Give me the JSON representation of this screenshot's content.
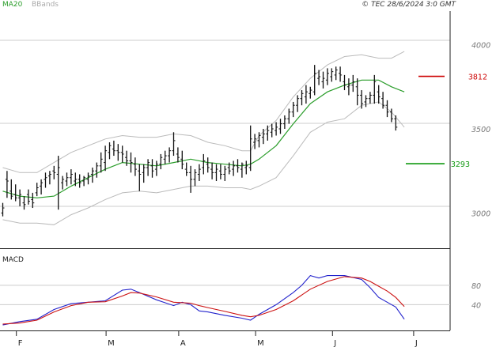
{
  "header": {
    "legend_ma": "MA20",
    "legend_bb": "BBands",
    "copyright": "© TEC 28/6/2024 3:0 GMT"
  },
  "colors": {
    "candle": "#111111",
    "ma20": "#2a9d2a",
    "bbands": "#bbbbbb",
    "resistance": "#cc0000",
    "support": "#119911",
    "macd": "#2222cc",
    "signal": "#cc1111",
    "grid": "#cccccc",
    "axis": "#222222"
  },
  "chart_data": [
    {
      "type": "ohlc",
      "panel": "price",
      "ylim": [
        2800,
        4200
      ],
      "yticks": [
        {
          "value": 4000,
          "label": "4000"
        },
        {
          "value": 3500,
          "label": "3500"
        },
        {
          "value": 3000,
          "label": "3000"
        }
      ],
      "levels": [
        {
          "name": "resistance",
          "value": 3812,
          "label": "3812"
        },
        {
          "name": "support",
          "value": 3293,
          "label": "3293"
        }
      ],
      "x_months": [
        {
          "index": 3,
          "label": "F"
        },
        {
          "index": 24,
          "label": "M"
        },
        {
          "index": 41,
          "label": "A"
        },
        {
          "index": 59,
          "label": "M"
        },
        {
          "index": 77,
          "label": "J"
        },
        {
          "index": 96,
          "label": "J"
        }
      ],
      "n_slots": 104,
      "ohlc": [
        [
          3000,
          3060,
          2980,
          3030
        ],
        [
          3200,
          3250,
          3090,
          3190
        ],
        [
          3130,
          3200,
          3080,
          3100
        ],
        [
          3110,
          3170,
          3070,
          3090
        ],
        [
          3090,
          3140,
          3040,
          3110
        ],
        [
          3060,
          3100,
          3020,
          3050
        ],
        [
          3110,
          3140,
          3050,
          3070
        ],
        [
          3080,
          3120,
          3030,
          3060
        ],
        [
          3120,
          3180,
          3100,
          3150
        ],
        [
          3160,
          3200,
          3110,
          3180
        ],
        [
          3200,
          3240,
          3150,
          3210
        ],
        [
          3220,
          3250,
          3170,
          3230
        ],
        [
          3250,
          3280,
          3200,
          3240
        ],
        [
          3230,
          3340,
          3020,
          3270
        ],
        [
          3180,
          3220,
          3140,
          3200
        ],
        [
          3190,
          3240,
          3160,
          3210
        ],
        [
          3210,
          3260,
          3170,
          3230
        ],
        [
          3190,
          3240,
          3160,
          3200
        ],
        [
          3200,
          3230,
          3150,
          3180
        ],
        [
          3190,
          3220,
          3160,
          3210
        ],
        [
          3200,
          3240,
          3170,
          3220
        ],
        [
          3230,
          3270,
          3180,
          3250
        ],
        [
          3250,
          3300,
          3210,
          3280
        ],
        [
          3280,
          3360,
          3240,
          3320
        ],
        [
          3300,
          3400,
          3250,
          3370
        ],
        [
          3360,
          3420,
          3320,
          3400
        ],
        [
          3380,
          3430,
          3340,
          3370
        ],
        [
          3370,
          3410,
          3310,
          3360
        ],
        [
          3360,
          3400,
          3300,
          3350
        ],
        [
          3330,
          3370,
          3280,
          3310
        ],
        [
          3310,
          3360,
          3240,
          3300
        ],
        [
          3290,
          3330,
          3220,
          3260
        ],
        [
          3250,
          3290,
          3130,
          3230
        ],
        [
          3240,
          3290,
          3180,
          3270
        ],
        [
          3270,
          3320,
          3220,
          3300
        ],
        [
          3280,
          3320,
          3210,
          3250
        ],
        [
          3260,
          3310,
          3220,
          3290
        ],
        [
          3290,
          3350,
          3260,
          3330
        ],
        [
          3320,
          3370,
          3290,
          3340
        ],
        [
          3340,
          3390,
          3300,
          3370
        ],
        [
          3370,
          3480,
          3340,
          3430
        ],
        [
          3350,
          3390,
          3300,
          3330
        ],
        [
          3320,
          3370,
          3260,
          3290
        ],
        [
          3260,
          3300,
          3220,
          3240
        ],
        [
          3240,
          3280,
          3120,
          3200
        ],
        [
          3200,
          3260,
          3160,
          3240
        ],
        [
          3230,
          3290,
          3190,
          3260
        ],
        [
          3270,
          3350,
          3230,
          3310
        ],
        [
          3290,
          3330,
          3240,
          3270
        ],
        [
          3260,
          3300,
          3200,
          3240
        ],
        [
          3240,
          3290,
          3190,
          3260
        ],
        [
          3250,
          3290,
          3200,
          3230
        ],
        [
          3230,
          3280,
          3190,
          3260
        ],
        [
          3270,
          3300,
          3230,
          3250
        ],
        [
          3260,
          3310,
          3220,
          3280
        ],
        [
          3280,
          3320,
          3240,
          3270
        ],
        [
          3260,
          3300,
          3210,
          3290
        ],
        [
          3270,
          3310,
          3230,
          3280
        ],
        [
          3270,
          3520,
          3250,
          3440
        ],
        [
          3420,
          3470,
          3380,
          3440
        ],
        [
          3430,
          3480,
          3390,
          3460
        ],
        [
          3450,
          3500,
          3410,
          3470
        ],
        [
          3470,
          3520,
          3430,
          3490
        ],
        [
          3480,
          3530,
          3450,
          3500
        ],
        [
          3490,
          3540,
          3460,
          3510
        ],
        [
          3500,
          3560,
          3470,
          3530
        ],
        [
          3530,
          3580,
          3500,
          3560
        ],
        [
          3560,
          3620,
          3530,
          3600
        ],
        [
          3600,
          3660,
          3570,
          3640
        ],
        [
          3640,
          3700,
          3600,
          3680
        ],
        [
          3680,
          3730,
          3640,
          3710
        ],
        [
          3690,
          3760,
          3650,
          3720
        ],
        [
          3710,
          3750,
          3680,
          3730
        ],
        [
          3720,
          3880,
          3700,
          3830
        ],
        [
          3800,
          3850,
          3760,
          3810
        ],
        [
          3780,
          3840,
          3740,
          3800
        ],
        [
          3790,
          3860,
          3760,
          3830
        ],
        [
          3810,
          3860,
          3780,
          3840
        ],
        [
          3820,
          3870,
          3790,
          3850
        ],
        [
          3830,
          3870,
          3780,
          3820
        ],
        [
          3780,
          3820,
          3730,
          3760
        ],
        [
          3750,
          3800,
          3700,
          3760
        ],
        [
          3760,
          3820,
          3720,
          3780
        ],
        [
          3750,
          3800,
          3640,
          3700
        ],
        [
          3700,
          3730,
          3620,
          3650
        ],
        [
          3660,
          3700,
          3630,
          3680
        ],
        [
          3680,
          3720,
          3650,
          3700
        ],
        [
          3700,
          3820,
          3650,
          3780
        ],
        [
          3720,
          3760,
          3650,
          3690
        ],
        [
          3680,
          3720,
          3620,
          3640
        ],
        [
          3640,
          3670,
          3570,
          3600
        ],
        [
          3600,
          3620,
          3540,
          3560
        ],
        [
          3560,
          3580,
          3490,
          3510
        ]
      ],
      "ma20": [
        [
          0,
          3130
        ],
        [
          4,
          3100
        ],
        [
          8,
          3090
        ],
        [
          12,
          3100
        ],
        [
          16,
          3160
        ],
        [
          20,
          3210
        ],
        [
          24,
          3260
        ],
        [
          28,
          3300
        ],
        [
          32,
          3290
        ],
        [
          36,
          3280
        ],
        [
          40,
          3300
        ],
        [
          44,
          3320
        ],
        [
          48,
          3300
        ],
        [
          52,
          3290
        ],
        [
          56,
          3280
        ],
        [
          58,
          3290
        ],
        [
          60,
          3320
        ],
        [
          64,
          3400
        ],
        [
          68,
          3530
        ],
        [
          72,
          3650
        ],
        [
          76,
          3720
        ],
        [
          80,
          3760
        ],
        [
          84,
          3790
        ],
        [
          88,
          3790
        ],
        [
          91,
          3750
        ],
        [
          94,
          3720
        ]
      ],
      "bb_upper": [
        [
          0,
          3270
        ],
        [
          4,
          3240
        ],
        [
          8,
          3240
        ],
        [
          12,
          3300
        ],
        [
          16,
          3360
        ],
        [
          20,
          3400
        ],
        [
          24,
          3440
        ],
        [
          28,
          3460
        ],
        [
          32,
          3450
        ],
        [
          36,
          3450
        ],
        [
          40,
          3470
        ],
        [
          44,
          3460
        ],
        [
          48,
          3420
        ],
        [
          52,
          3400
        ],
        [
          56,
          3370
        ],
        [
          58,
          3370
        ],
        [
          60,
          3460
        ],
        [
          64,
          3550
        ],
        [
          68,
          3690
        ],
        [
          72,
          3800
        ],
        [
          76,
          3880
        ],
        [
          80,
          3930
        ],
        [
          84,
          3940
        ],
        [
          88,
          3920
        ],
        [
          91,
          3920
        ],
        [
          94,
          3960
        ]
      ],
      "bb_lower": [
        [
          0,
          2960
        ],
        [
          4,
          2940
        ],
        [
          8,
          2940
        ],
        [
          12,
          2930
        ],
        [
          16,
          2990
        ],
        [
          20,
          3030
        ],
        [
          24,
          3080
        ],
        [
          28,
          3120
        ],
        [
          32,
          3130
        ],
        [
          36,
          3120
        ],
        [
          40,
          3140
        ],
        [
          44,
          3160
        ],
        [
          48,
          3160
        ],
        [
          52,
          3150
        ],
        [
          56,
          3150
        ],
        [
          58,
          3140
        ],
        [
          60,
          3160
        ],
        [
          64,
          3210
        ],
        [
          68,
          3340
        ],
        [
          72,
          3480
        ],
        [
          76,
          3540
        ],
        [
          80,
          3560
        ],
        [
          84,
          3640
        ],
        [
          88,
          3660
        ],
        [
          91,
          3600
        ],
        [
          94,
          3510
        ]
      ]
    },
    {
      "type": "line",
      "panel": "macd",
      "title": "MACD",
      "ylim": [
        -10,
        150
      ],
      "yticks": [
        {
          "value": 80,
          "label": "80"
        },
        {
          "value": 40,
          "label": "40"
        }
      ],
      "series": [
        {
          "name": "MACD",
          "points": [
            [
              0,
              -2
            ],
            [
              4,
              5
            ],
            [
              8,
              10
            ],
            [
              12,
              30
            ],
            [
              16,
              42
            ],
            [
              20,
              45
            ],
            [
              24,
              48
            ],
            [
              28,
              70
            ],
            [
              30,
              72
            ],
            [
              32,
              65
            ],
            [
              36,
              50
            ],
            [
              40,
              38
            ],
            [
              42,
              45
            ],
            [
              44,
              40
            ],
            [
              46,
              27
            ],
            [
              48,
              25
            ],
            [
              52,
              18
            ],
            [
              56,
              12
            ],
            [
              58,
              8
            ],
            [
              60,
              20
            ],
            [
              64,
              40
            ],
            [
              68,
              65
            ],
            [
              70,
              80
            ],
            [
              72,
              100
            ],
            [
              74,
              95
            ],
            [
              76,
              100
            ],
            [
              80,
              100
            ],
            [
              84,
              92
            ],
            [
              86,
              75
            ],
            [
              88,
              55
            ],
            [
              90,
              45
            ],
            [
              92,
              35
            ],
            [
              94,
              10
            ]
          ]
        },
        {
          "name": "Signal",
          "points": [
            [
              0,
              0
            ],
            [
              4,
              2
            ],
            [
              8,
              8
            ],
            [
              12,
              25
            ],
            [
              16,
              38
            ],
            [
              20,
              45
            ],
            [
              24,
              46
            ],
            [
              28,
              58
            ],
            [
              30,
              65
            ],
            [
              32,
              64
            ],
            [
              36,
              56
            ],
            [
              40,
              45
            ],
            [
              44,
              43
            ],
            [
              46,
              38
            ],
            [
              48,
              34
            ],
            [
              52,
              26
            ],
            [
              56,
              18
            ],
            [
              58,
              15
            ],
            [
              60,
              18
            ],
            [
              64,
              30
            ],
            [
              68,
              48
            ],
            [
              72,
              72
            ],
            [
              76,
              88
            ],
            [
              80,
              98
            ],
            [
              84,
              95
            ],
            [
              86,
              88
            ],
            [
              88,
              78
            ],
            [
              90,
              68
            ],
            [
              92,
              55
            ],
            [
              94,
              36
            ]
          ]
        }
      ]
    }
  ]
}
